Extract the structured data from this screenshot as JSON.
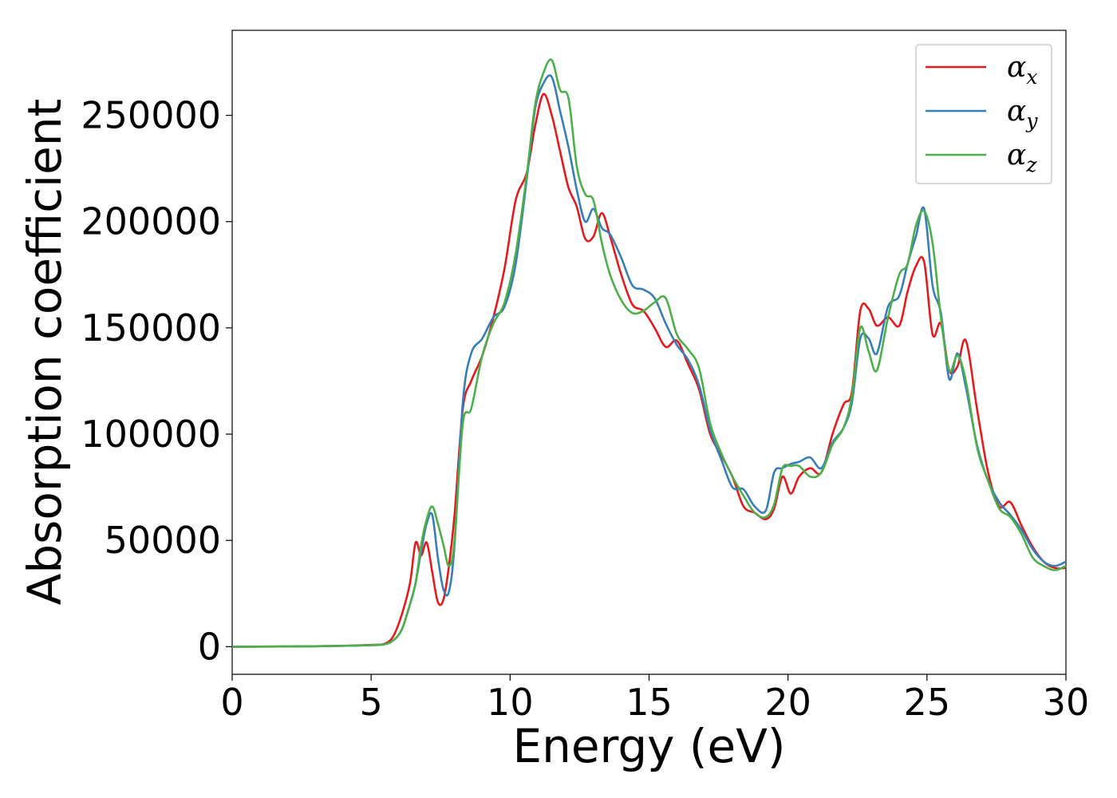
{
  "chart_data": {
    "type": "line",
    "xlabel": "Energy (eV)",
    "ylabel": "Absorption coefficient",
    "xlim": [
      0,
      30
    ],
    "ylim": [
      -13000,
      290000
    ],
    "xticks": [
      0,
      5,
      10,
      15,
      20,
      25,
      30
    ],
    "xtick_labels": [
      "0",
      "5",
      "10",
      "15",
      "20",
      "25",
      "30"
    ],
    "yticks": [
      0,
      50000,
      100000,
      150000,
      200000,
      250000
    ],
    "ytick_labels": [
      "0",
      "50000",
      "100000",
      "150000",
      "200000",
      "250000"
    ],
    "grid": false,
    "legend": {
      "position": "top-right",
      "entries": [
        {
          "symbol": "α",
          "subscript": "x",
          "color": "#e41a1c"
        },
        {
          "symbol": "α",
          "subscript": "y",
          "color": "#377eb8"
        },
        {
          "symbol": "α",
          "subscript": "z",
          "color": "#4daf4a"
        }
      ]
    },
    "series": [
      {
        "color": "#e41a1c",
        "x": [
          0,
          3,
          5,
          5.5,
          5.8,
          6.1,
          6.4,
          6.6,
          6.8,
          7.0,
          7.2,
          7.4,
          7.6,
          7.8,
          8.0,
          8.3,
          8.6,
          9.0,
          9.4,
          9.8,
          10.2,
          10.6,
          10.9,
          11.2,
          11.5,
          11.8,
          12.1,
          12.4,
          12.7,
          13.0,
          13.3,
          13.6,
          14.0,
          14.4,
          14.8,
          15.2,
          15.6,
          16.0,
          16.4,
          16.8,
          17.2,
          17.6,
          18.0,
          18.4,
          18.8,
          19.2,
          19.5,
          19.8,
          20.1,
          20.4,
          20.8,
          21.2,
          21.6,
          22.0,
          22.3,
          22.6,
          22.9,
          23.2,
          23.6,
          24.0,
          24.3,
          24.6,
          24.9,
          25.2,
          25.5,
          25.8,
          26.1,
          26.4,
          26.8,
          27.2,
          27.6,
          28.0,
          28.4,
          28.8,
          29.2,
          29.6,
          30.0
        ],
        "y": [
          0,
          200,
          800,
          1500,
          5000,
          15000,
          30000,
          49000,
          43000,
          49000,
          35000,
          21000,
          22000,
          38000,
          62000,
          112000,
          125000,
          137000,
          155000,
          178000,
          210000,
          223000,
          245000,
          260000,
          250000,
          233000,
          216000,
          207000,
          192000,
          193000,
          204000,
          193000,
          175000,
          161000,
          158000,
          150000,
          141000,
          144000,
          133000,
          121000,
          100000,
          90000,
          80000,
          66000,
          63000,
          60000,
          65000,
          80000,
          72000,
          80000,
          84000,
          82000,
          100000,
          114000,
          120000,
          158000,
          159000,
          151000,
          155000,
          151000,
          167000,
          179000,
          181000,
          147000,
          152000,
          130000,
          132000,
          144000,
          112000,
          82000,
          66000,
          68000,
          57000,
          47000,
          40000,
          37000,
          37000
        ]
      },
      {
        "color": "#377eb8",
        "x": [
          0,
          3,
          5,
          5.5,
          5.8,
          6.1,
          6.4,
          6.6,
          6.8,
          7.0,
          7.2,
          7.4,
          7.6,
          7.8,
          8.0,
          8.3,
          8.6,
          9.0,
          9.4,
          9.8,
          10.2,
          10.6,
          10.9,
          11.2,
          11.5,
          11.8,
          12.1,
          12.4,
          12.7,
          13.0,
          13.3,
          13.6,
          14.0,
          14.4,
          14.8,
          15.2,
          15.6,
          16.0,
          16.4,
          16.8,
          17.2,
          17.6,
          18.0,
          18.4,
          18.8,
          19.2,
          19.5,
          19.8,
          20.1,
          20.4,
          20.8,
          21.2,
          21.6,
          22.0,
          22.3,
          22.6,
          22.9,
          23.2,
          23.6,
          24.0,
          24.3,
          24.6,
          24.9,
          25.2,
          25.5,
          25.8,
          26.1,
          26.4,
          26.8,
          27.2,
          27.6,
          28.0,
          28.4,
          28.8,
          29.2,
          29.6,
          30.0
        ],
        "y": [
          0,
          200,
          700,
          1200,
          3000,
          8000,
          20000,
          30000,
          45000,
          58000,
          62000,
          42000,
          27000,
          26000,
          48000,
          115000,
          138000,
          145000,
          155000,
          160000,
          180000,
          220000,
          253000,
          265000,
          268000,
          252000,
          235000,
          215000,
          200000,
          206000,
          197000,
          194000,
          183000,
          170000,
          168000,
          164000,
          152000,
          142000,
          135000,
          123000,
          102000,
          88000,
          75000,
          74000,
          66000,
          64000,
          82000,
          84000,
          86000,
          87000,
          89000,
          84000,
          96000,
          103000,
          115000,
          145000,
          145000,
          138000,
          160000,
          165000,
          180000,
          193000,
          206000,
          170000,
          157000,
          126000,
          138000,
          122000,
          95000,
          78000,
          68000,
          62000,
          55000,
          46000,
          40000,
          38000,
          40000
        ]
      },
      {
        "color": "#4daf4a",
        "x": [
          0,
          3,
          5,
          5.5,
          5.8,
          6.1,
          6.4,
          6.6,
          6.8,
          7.0,
          7.2,
          7.4,
          7.6,
          7.8,
          8.0,
          8.3,
          8.6,
          9.0,
          9.4,
          9.8,
          10.2,
          10.6,
          10.9,
          11.2,
          11.5,
          11.8,
          12.1,
          12.4,
          12.7,
          13.0,
          13.3,
          13.6,
          14.0,
          14.4,
          14.8,
          15.2,
          15.6,
          16.0,
          16.4,
          16.8,
          17.2,
          17.6,
          18.0,
          18.4,
          18.8,
          19.2,
          19.5,
          19.8,
          20.1,
          20.4,
          20.8,
          21.2,
          21.6,
          22.0,
          22.3,
          22.6,
          22.9,
          23.2,
          23.6,
          24.0,
          24.3,
          24.6,
          24.9,
          25.2,
          25.5,
          25.8,
          26.1,
          26.4,
          26.8,
          27.2,
          27.6,
          28.0,
          28.4,
          28.8,
          29.2,
          29.6,
          30.0
        ],
        "y": [
          0,
          200,
          700,
          1200,
          3000,
          8000,
          20000,
          30000,
          48000,
          60000,
          66000,
          58000,
          48000,
          38000,
          50000,
          105000,
          112000,
          137000,
          152000,
          162000,
          185000,
          222000,
          255000,
          270000,
          276000,
          262000,
          258000,
          226000,
          213000,
          210000,
          190000,
          175000,
          163000,
          157000,
          158000,
          162000,
          164000,
          147000,
          140000,
          131000,
          105000,
          91000,
          80000,
          71000,
          63000,
          61000,
          67000,
          84000,
          85000,
          85000,
          80000,
          82000,
          95000,
          103000,
          118000,
          150000,
          139000,
          130000,
          155000,
          175000,
          180000,
          198000,
          205000,
          190000,
          155000,
          130000,
          137000,
          125000,
          94000,
          78000,
          65000,
          61000,
          53000,
          42000,
          38000,
          36000,
          38000
        ]
      }
    ]
  }
}
